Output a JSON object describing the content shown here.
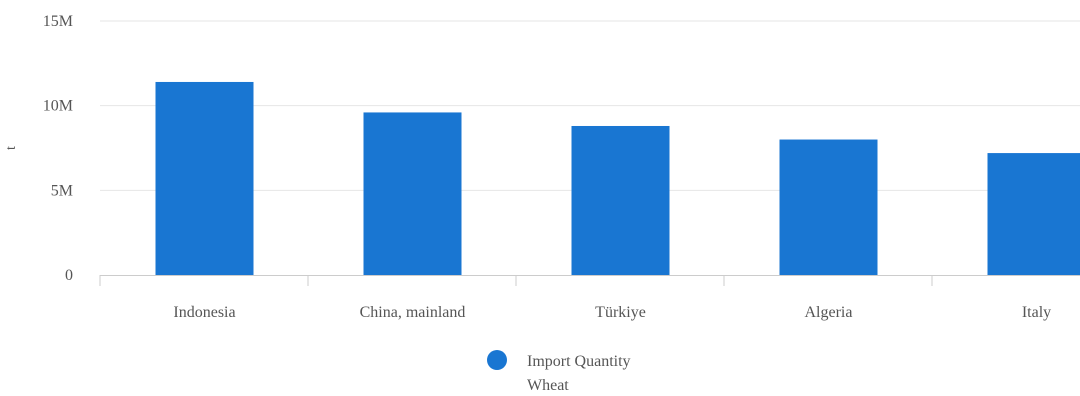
{
  "chart_data": {
    "type": "bar",
    "title": "",
    "xlabel": "",
    "ylabel": "t",
    "categories": [
      "Indonesia",
      "China, mainland",
      "Türkiye",
      "Algeria",
      "Italy"
    ],
    "series": [
      {
        "name": "Import Quantity Wheat",
        "values": [
          11400000,
          9600000,
          8800000,
          8000000,
          7200000
        ]
      }
    ],
    "ylim": [
      0,
      15000000
    ],
    "yticks": [
      0,
      5000000,
      10000000,
      15000000
    ],
    "ytick_labels": [
      "0",
      "5M",
      "10M",
      "15M"
    ],
    "grid": true,
    "legend": {
      "position": "bottom-center",
      "lines": [
        "Import Quantity",
        "Wheat"
      ]
    },
    "colors": {
      "bar": "#1976d2",
      "grid": "#e6e6e6",
      "axis": "#cccccc"
    }
  }
}
